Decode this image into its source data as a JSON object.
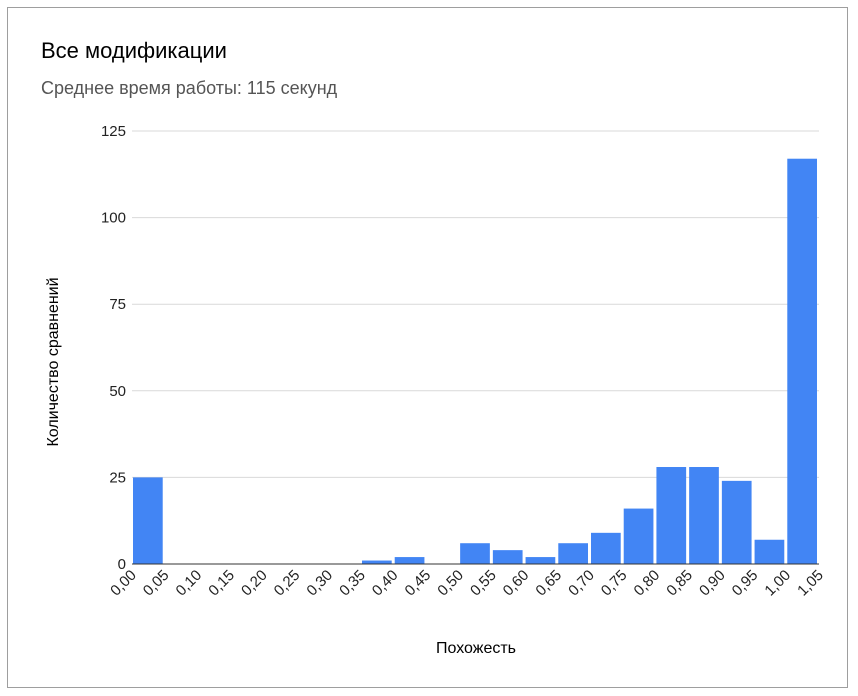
{
  "chart_data": {
    "type": "bar",
    "title": "Все модификации",
    "subtitle": "Среднее время работы: 115 секунд",
    "xlabel": "Похожесть",
    "ylabel": "Количество сравнений",
    "x_ticks": [
      "0,00",
      "0,05",
      "0,10",
      "0,15",
      "0,20",
      "0,25",
      "0,30",
      "0,35",
      "0,40",
      "0,45",
      "0,50",
      "0,55",
      "0,60",
      "0,65",
      "0,70",
      "0,75",
      "0,80",
      "0,85",
      "0,90",
      "0,95",
      "1,00",
      "1,05"
    ],
    "y_ticks": [
      0,
      25,
      50,
      75,
      100,
      125
    ],
    "ylim": [
      0,
      125
    ],
    "bins": [
      {
        "from": 0.0,
        "to": 0.05,
        "value": 25
      },
      {
        "from": 0.05,
        "to": 0.1,
        "value": 0
      },
      {
        "from": 0.1,
        "to": 0.15,
        "value": 0
      },
      {
        "from": 0.15,
        "to": 0.2,
        "value": 0
      },
      {
        "from": 0.2,
        "to": 0.25,
        "value": 0
      },
      {
        "from": 0.25,
        "to": 0.3,
        "value": 0
      },
      {
        "from": 0.3,
        "to": 0.35,
        "value": 0
      },
      {
        "from": 0.35,
        "to": 0.4,
        "value": 1
      },
      {
        "from": 0.4,
        "to": 0.45,
        "value": 2
      },
      {
        "from": 0.45,
        "to": 0.5,
        "value": 0
      },
      {
        "from": 0.5,
        "to": 0.55,
        "value": 6
      },
      {
        "from": 0.55,
        "to": 0.6,
        "value": 4
      },
      {
        "from": 0.6,
        "to": 0.65,
        "value": 2
      },
      {
        "from": 0.65,
        "to": 0.7,
        "value": 6
      },
      {
        "from": 0.7,
        "to": 0.75,
        "value": 9
      },
      {
        "from": 0.75,
        "to": 0.8,
        "value": 16
      },
      {
        "from": 0.8,
        "to": 0.85,
        "value": 28
      },
      {
        "from": 0.85,
        "to": 0.9,
        "value": 28
      },
      {
        "from": 0.9,
        "to": 0.95,
        "value": 24
      },
      {
        "from": 0.95,
        "to": 1.0,
        "value": 7
      },
      {
        "from": 1.0,
        "to": 1.05,
        "value": 117
      }
    ],
    "grid": true,
    "legend": "none",
    "bar_color": "#4285f4",
    "grid_color": "#d9d9d9",
    "axis_color": "#333333"
  }
}
